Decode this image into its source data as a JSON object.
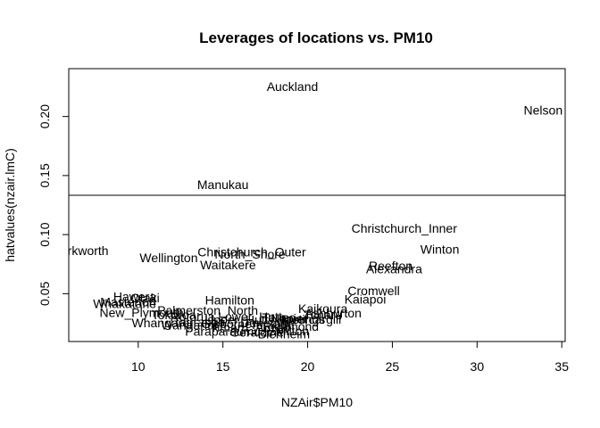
{
  "chart_data": {
    "type": "scatter",
    "title": "Leverages of locations vs. PM10",
    "xlabel": "NZAir$PM10",
    "ylabel": "hatvalues(nzair.lmC)",
    "xlim": [
      5.9,
      35.2
    ],
    "ylim": [
      0.0095,
      0.2405
    ],
    "x_ticks": [
      10,
      15,
      20,
      25,
      30,
      35
    ],
    "y_ticks": [
      0.05,
      0.1,
      0.15,
      0.2
    ],
    "x_tick_labels": [
      "10",
      "15",
      "20",
      "25",
      "30",
      "35"
    ],
    "y_tick_labels": [
      "0.05",
      "0.10",
      "0.15",
      "0.20"
    ],
    "reference_line_y": 0.1333,
    "grid": false,
    "legend": "none",
    "points": [
      {
        "label": "Auckland",
        "x": 19.1,
        "y": 0.2255
      },
      {
        "label": "Nelson",
        "x": 33.9,
        "y": 0.2055
      },
      {
        "label": "Manukau",
        "x": 15.0,
        "y": 0.1425
      },
      {
        "label": "Christchurch_Inner",
        "x": 25.7,
        "y": 0.1055
      },
      {
        "label": "Warkworth",
        "x": 6.5,
        "y": 0.0865
      },
      {
        "label": "Winton",
        "x": 27.8,
        "y": 0.0875
      },
      {
        "label": "Christchurch_Outer",
        "x": 16.7,
        "y": 0.0855
      },
      {
        "label": "North_Shore",
        "x": 16.6,
        "y": 0.0835
      },
      {
        "label": "Wellington",
        "x": 11.8,
        "y": 0.0805
      },
      {
        "label": "Waitakere",
        "x": 15.3,
        "y": 0.0745
      },
      {
        "label": "Reefton",
        "x": 24.9,
        "y": 0.0735
      },
      {
        "label": "Alexandra",
        "x": 25.1,
        "y": 0.071
      },
      {
        "label": "Cromwell",
        "x": 23.9,
        "y": 0.0525
      },
      {
        "label": "Kaiapoi",
        "x": 23.4,
        "y": 0.0455
      },
      {
        "label": "Hawera",
        "x": 9.8,
        "y": 0.0475
      },
      {
        "label": "Otaki",
        "x": 10.4,
        "y": 0.0465
      },
      {
        "label": "Hamilton",
        "x": 15.4,
        "y": 0.0445
      },
      {
        "label": "Masterton",
        "x": 9.4,
        "y": 0.043
      },
      {
        "label": "Whakatane",
        "x": 9.2,
        "y": 0.0415
      },
      {
        "label": "Kaikoura",
        "x": 20.9,
        "y": 0.0375
      },
      {
        "label": "Palmerston_North",
        "x": 14.1,
        "y": 0.036
      },
      {
        "label": "New_Plymouth",
        "x": 10.2,
        "y": 0.034
      },
      {
        "label": "Ashburton",
        "x": 21.5,
        "y": 0.0335
      },
      {
        "label": "Tokoroa",
        "x": 12.1,
        "y": 0.032
      },
      {
        "label": "Timaru",
        "x": 20.9,
        "y": 0.032
      },
      {
        "label": "Rotorua",
        "x": 13.2,
        "y": 0.0305
      },
      {
        "label": "Lower_Hutt",
        "x": 16.6,
        "y": 0.0305
      },
      {
        "label": "Taupo",
        "x": 18.3,
        "y": 0.03
      },
      {
        "label": "Napier",
        "x": 18.9,
        "y": 0.029
      },
      {
        "label": "Hastings",
        "x": 19.6,
        "y": 0.0285
      },
      {
        "label": "Invercargill",
        "x": 20.2,
        "y": 0.0285
      },
      {
        "label": "Upper_Hutt",
        "x": 15.8,
        "y": 0.028
      },
      {
        "label": "Whangarei",
        "x": 11.4,
        "y": 0.0255
      },
      {
        "label": "Tauranga",
        "x": 13.6,
        "y": 0.026
      },
      {
        "label": "Gisborne",
        "x": 15.2,
        "y": 0.0245
      },
      {
        "label": "Dunedin",
        "x": 17.4,
        "y": 0.0255
      },
      {
        "label": "Wanganui",
        "x": 13.0,
        "y": 0.0235
      },
      {
        "label": "Te_Kuiti",
        "x": 17.9,
        "y": 0.024
      },
      {
        "label": "Richmond",
        "x": 19.0,
        "y": 0.0225
      },
      {
        "label": "Timaru_Anzac",
        "x": 16.6,
        "y": 0.0215
      },
      {
        "label": "Paraparaumu",
        "x": 15.0,
        "y": 0.018
      },
      {
        "label": "Geraldine",
        "x": 17.0,
        "y": 0.0175
      },
      {
        "label": "Milton",
        "x": 19.1,
        "y": 0.0185
      },
      {
        "label": "Blenheim",
        "x": 18.6,
        "y": 0.016
      }
    ]
  }
}
